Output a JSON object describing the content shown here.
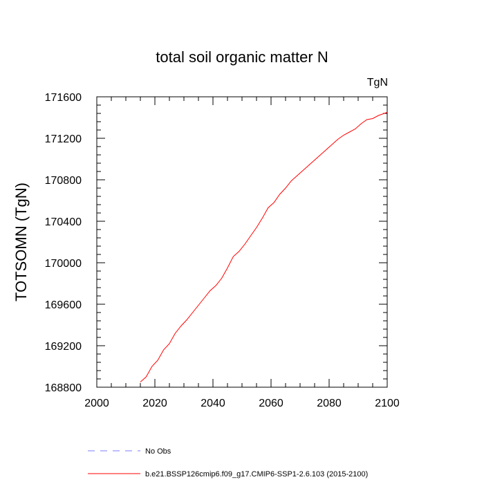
{
  "chart_data": {
    "type": "line",
    "title": "total soil organic matter N",
    "units_label": "TgN",
    "xlabel": "",
    "ylabel": "TOTSOMN  (TgN)",
    "xlim": [
      2000,
      2100
    ],
    "ylim": [
      168800,
      171600
    ],
    "x_ticks": [
      2000,
      2020,
      2040,
      2060,
      2080,
      2100
    ],
    "x_tick_labels": [
      "2000",
      "2020",
      "2040",
      "2060",
      "2080",
      "2100"
    ],
    "y_ticks": [
      168800,
      169200,
      169600,
      170000,
      170400,
      170800,
      171200,
      171600
    ],
    "y_tick_labels": [
      "168800",
      "169200",
      "169600",
      "170000",
      "170400",
      "170800",
      "171200",
      "171600"
    ],
    "grid": false,
    "legend_position": "bottom",
    "legend": [
      {
        "label": "No Obs",
        "color": "#7b7bff",
        "style": "dashed"
      },
      {
        "label": "b.e21.BSSP126cmip6.f09_g17.CMIP6-SSP1-2.6.103 (2015-2100)",
        "color": "#ff0000",
        "style": "solid"
      }
    ],
    "series": [
      {
        "color": "#ff0000",
        "x": [
          2015,
          2017,
          2019,
          2021,
          2023,
          2025,
          2027,
          2029,
          2031,
          2033,
          2035,
          2037,
          2039,
          2041,
          2043,
          2045,
          2047,
          2049,
          2051,
          2053,
          2055,
          2057,
          2059,
          2061,
          2063,
          2065,
          2067,
          2069,
          2071,
          2073,
          2075,
          2077,
          2079,
          2081,
          2083,
          2085,
          2087,
          2089,
          2091,
          2093,
          2095,
          2097,
          2100
        ],
        "y": [
          168850,
          168900,
          169000,
          169060,
          169160,
          169220,
          169320,
          169390,
          169450,
          169520,
          169590,
          169660,
          169730,
          169780,
          169850,
          169950,
          170060,
          170110,
          170180,
          170260,
          170340,
          170430,
          170530,
          170580,
          170660,
          170720,
          170790,
          170840,
          170890,
          170940,
          170990,
          171040,
          171090,
          171140,
          171190,
          171230,
          171260,
          171290,
          171340,
          171380,
          171390,
          171420,
          171450
        ]
      }
    ]
  }
}
